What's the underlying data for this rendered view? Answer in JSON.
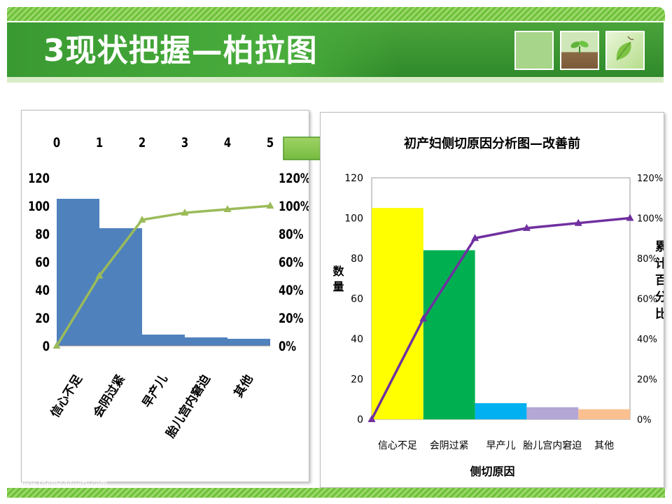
{
  "page": {
    "title": "3现状把握—柏拉图",
    "footer_url": "www.themegallery.com",
    "colors": {
      "title_bar": "#3f9c35",
      "accent_green": "#7cc243",
      "bar_blue": "#4f81bd",
      "line_green": "#9bbb59",
      "line_purple": "#7030a0"
    }
  },
  "chart_data": [
    {
      "type": "bar",
      "title": "",
      "categories": [
        "信心不足",
        "会阴过紧",
        "早产儿",
        "胎儿宫内窘迫",
        "其他"
      ],
      "secondary_x_ticks": [
        "0",
        "1",
        "2",
        "3",
        "4",
        "5"
      ],
      "series": [
        {
          "type": "bar",
          "values": [
            105,
            84,
            8,
            6,
            5
          ],
          "color": "#4f81bd"
        },
        {
          "type": "line",
          "axis": "secondary",
          "x": [
            0,
            1,
            2,
            3,
            4,
            5
          ],
          "values": [
            0,
            50,
            90,
            95,
            97.5,
            100
          ],
          "color": "#9bbb59"
        }
      ],
      "ylim": [
        0,
        120
      ],
      "y_ticks": [
        "0",
        "20",
        "40",
        "60",
        "80",
        "100",
        "120"
      ],
      "y2lim": [
        0,
        120
      ],
      "y2_ticks": [
        "0%",
        "20%",
        "40%",
        "60%",
        "80%",
        "100%",
        "120%"
      ],
      "grid": false,
      "legend": "none"
    },
    {
      "type": "bar",
      "title": "初产妇侧切原因分析图—改善前",
      "xlabel": "侧切原因",
      "ylabel": "数量",
      "y2label": "累计百分比",
      "categories": [
        "信心不足",
        "会阴过紧",
        "早产儿",
        "胎儿宫内窘迫",
        "其他"
      ],
      "bar_colors": [
        "#ffff00",
        "#00b050",
        "#00b0f0",
        "#b4a7d6",
        "#fac090"
      ],
      "series": [
        {
          "type": "bar",
          "values": [
            105,
            84,
            8,
            6,
            5
          ]
        },
        {
          "type": "line",
          "axis": "secondary",
          "x": [
            0,
            1,
            2,
            3,
            4,
            5
          ],
          "values": [
            0,
            50,
            90,
            95,
            97.5,
            100
          ],
          "color": "#7030a0"
        }
      ],
      "ylim": [
        0,
        120
      ],
      "y_ticks": [
        "0",
        "20",
        "40",
        "60",
        "80",
        "100",
        "120"
      ],
      "y2lim": [
        0,
        120
      ],
      "y2_ticks": [
        "0%",
        "20%",
        "40%",
        "60%",
        "80%",
        "100%",
        "120%"
      ],
      "grid": false,
      "legend": "none"
    }
  ]
}
